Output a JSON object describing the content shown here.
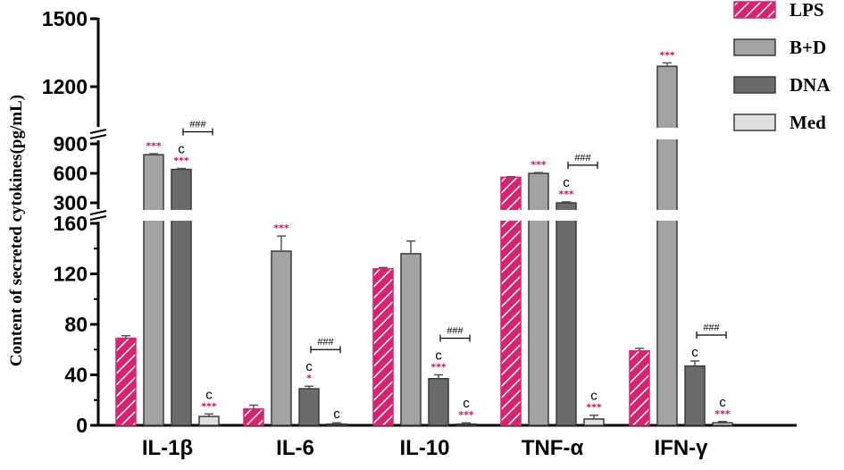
{
  "chart_data": {
    "type": "bar",
    "title": "",
    "ylabel": "Content of secreted cytokines(pg/mL)",
    "xlabel": "",
    "categories": [
      "IL-1β",
      "IL-6",
      "IL-10",
      "TNF-α",
      "IFN-γ"
    ],
    "axis_segments": [
      {
        "range": [
          0,
          160
        ],
        "ticks": [
          "0",
          "40",
          "80",
          "120",
          "160"
        ]
      },
      {
        "range": [
          200,
          900
        ],
        "ticks": [
          "300",
          "600",
          "900"
        ]
      },
      {
        "range": [
          1000,
          1500
        ],
        "ticks": [
          "1200",
          "1500"
        ]
      }
    ],
    "series": [
      {
        "name": "LPS",
        "color": "#d6246e",
        "pattern": "hatched",
        "values": [
          69,
          13,
          124,
          560,
          59
        ],
        "errors": [
          2,
          3,
          1,
          6,
          2
        ]
      },
      {
        "name": "B+D",
        "color": "#a3a3a3",
        "pattern": "solid",
        "values": [
          790,
          138,
          136,
          600,
          1290
        ],
        "errors": [
          10,
          12,
          10,
          8,
          15
        ]
      },
      {
        "name": "DNA",
        "color": "#6b6b6b",
        "pattern": "solid",
        "values": [
          640,
          29,
          37,
          300,
          47
        ],
        "errors": [
          10,
          2,
          3,
          10,
          4
        ]
      },
      {
        "name": "Med",
        "color": "#e0e0e0",
        "pattern": "solid",
        "values": [
          7,
          1,
          1,
          5,
          2
        ],
        "errors": [
          2,
          1,
          1,
          3,
          1
        ]
      }
    ],
    "annotations": [
      {
        "category": 0,
        "series": 1,
        "marks": [
          "***"
        ]
      },
      {
        "category": 0,
        "series": 2,
        "marks": [
          "c",
          "***"
        ]
      },
      {
        "category": 0,
        "series": 3,
        "marks": [
          "c",
          "***"
        ]
      },
      {
        "category": 1,
        "series": 1,
        "marks": [
          "***"
        ]
      },
      {
        "category": 1,
        "series": 2,
        "marks": [
          "c",
          "*"
        ]
      },
      {
        "category": 1,
        "series": 3,
        "marks": [
          "c"
        ]
      },
      {
        "category": 2,
        "series": 2,
        "marks": [
          "c",
          "***"
        ]
      },
      {
        "category": 2,
        "series": 3,
        "marks": [
          "c",
          "***"
        ]
      },
      {
        "category": 3,
        "series": 1,
        "marks": [
          "***"
        ]
      },
      {
        "category": 3,
        "series": 2,
        "marks": [
          "c",
          "***"
        ]
      },
      {
        "category": 3,
        "series": 3,
        "marks": [
          "c",
          "***"
        ]
      },
      {
        "category": 4,
        "series": 1,
        "marks": [
          "***"
        ]
      },
      {
        "category": 4,
        "series": 2,
        "marks": [
          "c"
        ]
      },
      {
        "category": 4,
        "series": 3,
        "marks": [
          "c",
          "***"
        ]
      }
    ],
    "brackets": [
      {
        "category": 0,
        "from_series": 2,
        "to_series": 3,
        "label": "###"
      },
      {
        "category": 1,
        "from_series": 2,
        "to_series": 3,
        "label": "###"
      },
      {
        "category": 2,
        "from_series": 2,
        "to_series": 3,
        "label": "###"
      },
      {
        "category": 3,
        "from_series": 2,
        "to_series": 3,
        "label": "###"
      },
      {
        "category": 4,
        "from_series": 2,
        "to_series": 3,
        "label": "###"
      }
    ],
    "legend": {
      "position": "top-right"
    },
    "grid": false
  }
}
